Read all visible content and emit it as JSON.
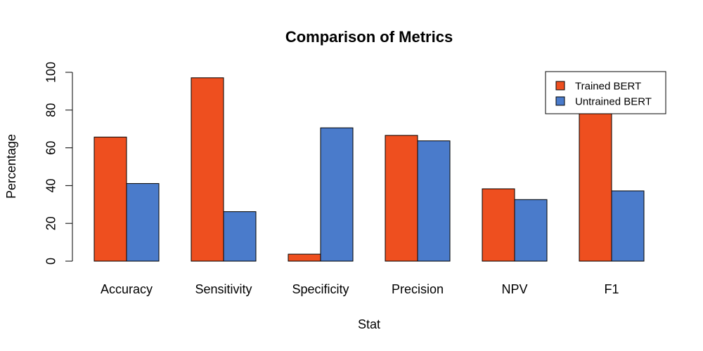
{
  "chart_data": {
    "type": "bar",
    "title": "Comparison of Metrics",
    "xlabel": "Stat",
    "ylabel": "Percentage",
    "ylim": [
      0,
      100
    ],
    "yticks": [
      0,
      20,
      40,
      60,
      80,
      100
    ],
    "categories": [
      "Accuracy",
      "Sensitivity",
      "Specificity",
      "Precision",
      "NPV",
      "F1"
    ],
    "series": [
      {
        "name": "Trained BERT",
        "color": "#EE4F1F",
        "values": [
          65.7,
          97.1,
          3.7,
          66.6,
          38.3,
          79.0
        ]
      },
      {
        "name": "Untrained BERT",
        "color": "#4A7BCB",
        "values": [
          41.1,
          26.2,
          70.6,
          63.7,
          32.6,
          37.2
        ]
      }
    ],
    "legend_position": "top-right",
    "grid": false
  }
}
